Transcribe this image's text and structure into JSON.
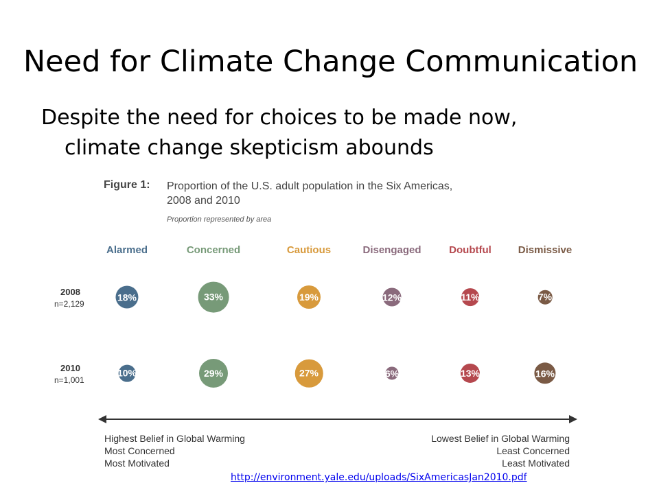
{
  "slide": {
    "title": "Need for Climate Change Communication",
    "bullet_line1": "Despite the need for choices to be made now,",
    "bullet_line2": "climate change skepticism abounds"
  },
  "figure": {
    "label": "Figure 1:",
    "title_line1": "Proportion of the U.S. adult population in the Six Americas,",
    "title_line2": "2008 and 2010",
    "subtitle": "Proportion represented by area",
    "segments": [
      {
        "name": "Alarmed",
        "color": "#4a6e8c"
      },
      {
        "name": "Concerned",
        "color": "#779a78"
      },
      {
        "name": "Cautious",
        "color": "#d89a3c"
      },
      {
        "name": "Disengaged",
        "color": "#8a6a7c"
      },
      {
        "name": "Doubtful",
        "color": "#b5484e"
      },
      {
        "name": "Dismissive",
        "color": "#7a5a45"
      }
    ],
    "rows": [
      {
        "year": "2008",
        "n": "n=2,129",
        "values": [
          18,
          33,
          19,
          12,
          11,
          7
        ],
        "labels": [
          "18%",
          "33%",
          "19%",
          "12%",
          "11%",
          "7%"
        ]
      },
      {
        "year": "2010",
        "n": "n=1,001",
        "values": [
          10,
          29,
          27,
          6,
          13,
          16
        ],
        "labels": [
          "10%",
          "29%",
          "27%",
          "6%",
          "13%",
          "16%"
        ]
      }
    ],
    "belief_left": [
      "Highest Belief in Global Warming",
      "Most Concerned",
      "Most Motivated"
    ],
    "belief_right": [
      "Lowest Belief in Global Warming",
      "Least Concerned",
      "Least Motivated"
    ]
  },
  "source_link": "http://environment.yale.edu/uploads/SixAmericasJan2010.pdf"
}
